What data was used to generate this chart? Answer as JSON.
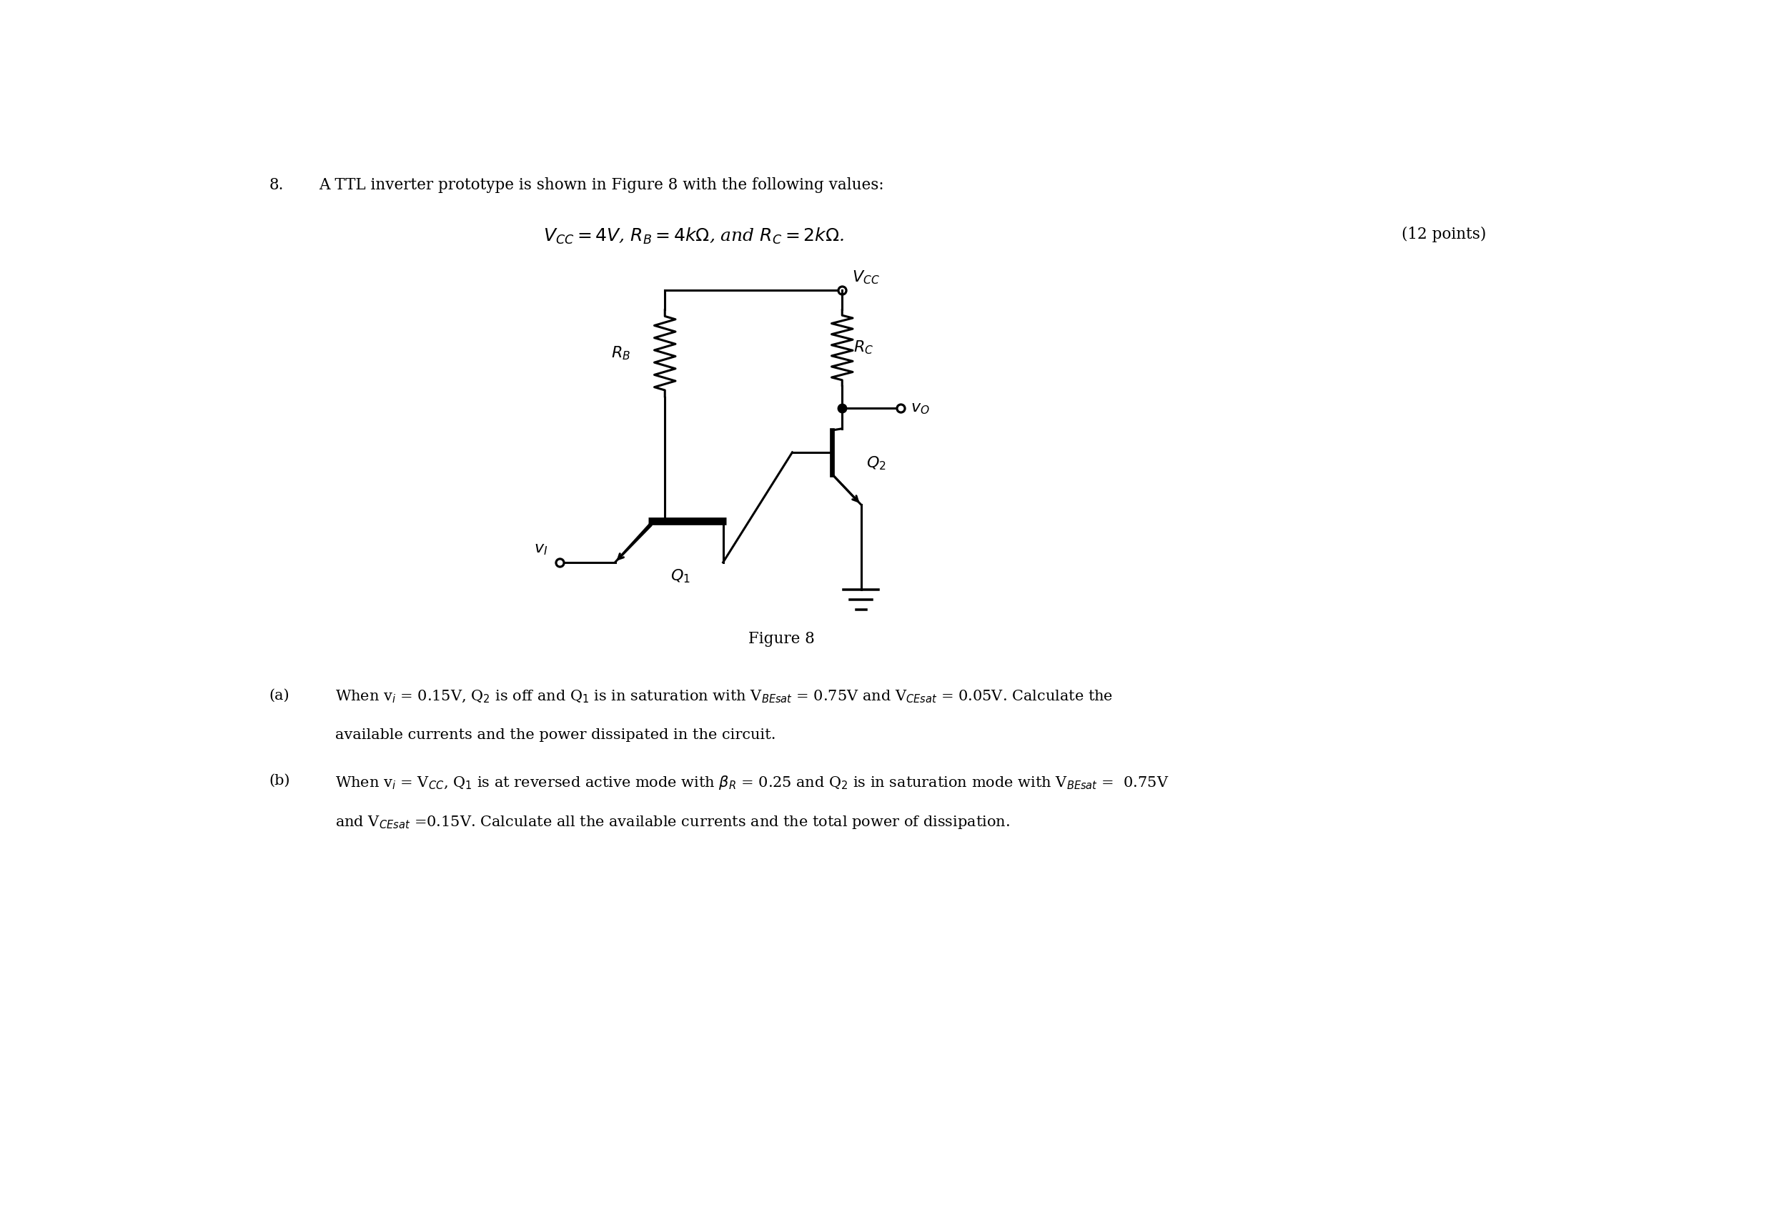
{
  "bg_color": "#ffffff",
  "text_color": "#000000",
  "title_num": "8.",
  "title_text": "A TTL inverter prototype is shown in Figure 8 with the following values:",
  "formula": "$V_{CC} = 4V$, $R_B = 4k\\Omega$, and $R_C = 2k\\Omega$.",
  "points": "(12 points)",
  "fig_label": "Figure 8",
  "part_a_label": "(a)",
  "part_a_line1": "When v$_i$ = 0.15V, Q$_2$ is off and Q$_1$ is in saturation with V$_{BEsat}$ = 0.75V and V$_{CEsat}$ = 0.05V. Calculate the",
  "part_a_line2": "available currents and the power dissipated in the circuit.",
  "part_b_label": "(b)",
  "part_b_line1": "When v$_i$ = V$_{CC}$, Q$_1$ is at reversed active mode with $\\beta_R$ = 0.25 and Q$_2$ is in saturation mode with V$_{BEsat}$ =  0.75V",
  "part_b_line2": "and V$_{CEsat}$ =0.15V. Calculate all the available currents and the total power of dissipation.",
  "lw": 2.2,
  "fs_title": 15.5,
  "fs_formula": 18,
  "fs_circuit": 16,
  "fs_body": 15.0
}
